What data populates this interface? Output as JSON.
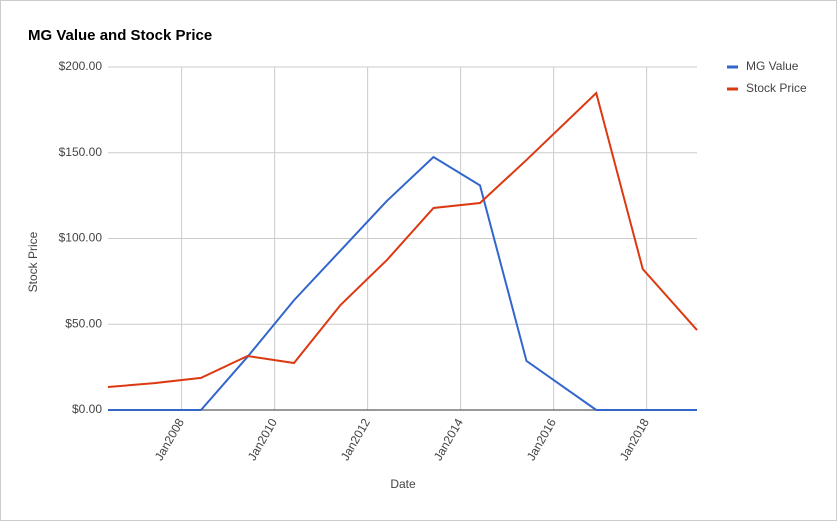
{
  "chart_data": {
    "type": "line",
    "title": "MG Value and Stock Price",
    "x": [
      "2006-06",
      "2007-06",
      "2008-06",
      "2009-06",
      "2010-06",
      "2011-06",
      "2012-06",
      "2013-06",
      "2014-06",
      "2015-06",
      "2016-12",
      "2017-12",
      "2019-02"
    ],
    "series": [
      {
        "name": "MG Value",
        "color": "#3366cc",
        "values": [
          0,
          0,
          0,
          31,
          64,
          93,
          122,
          147.5,
          131,
          28.6,
          0,
          0,
          0
        ]
      },
      {
        "name": "Stock Price",
        "color": "#dc3912",
        "values": [
          13.4,
          15.7,
          18.7,
          31.5,
          27.4,
          61.2,
          87.5,
          117.8,
          120.7,
          145.8,
          184.8,
          82.2,
          46.6
        ]
      }
    ],
    "xlim": [
      "2006-06",
      "2019-02"
    ],
    "xticks": [
      {
        "value": "2008-01",
        "label": "Jan2008"
      },
      {
        "value": "2010-01",
        "label": "Jan2010"
      },
      {
        "value": "2012-01",
        "label": "Jan2012"
      },
      {
        "value": "2014-01",
        "label": "Jan2014"
      },
      {
        "value": "2016-01",
        "label": "Jan2016"
      },
      {
        "value": "2018-01",
        "label": "Jan2018"
      }
    ],
    "ylim": [
      0,
      200
    ],
    "yticks": [
      {
        "value": 0,
        "label": "$0.00"
      },
      {
        "value": 50,
        "label": "$50.00"
      },
      {
        "value": 100,
        "label": "$100.00"
      },
      {
        "value": 150,
        "label": "$150.00"
      },
      {
        "value": 200,
        "label": "$200.00"
      }
    ],
    "xlabel": "Date",
    "ylabel": "Stock Price",
    "grid": true,
    "legend": "right"
  }
}
